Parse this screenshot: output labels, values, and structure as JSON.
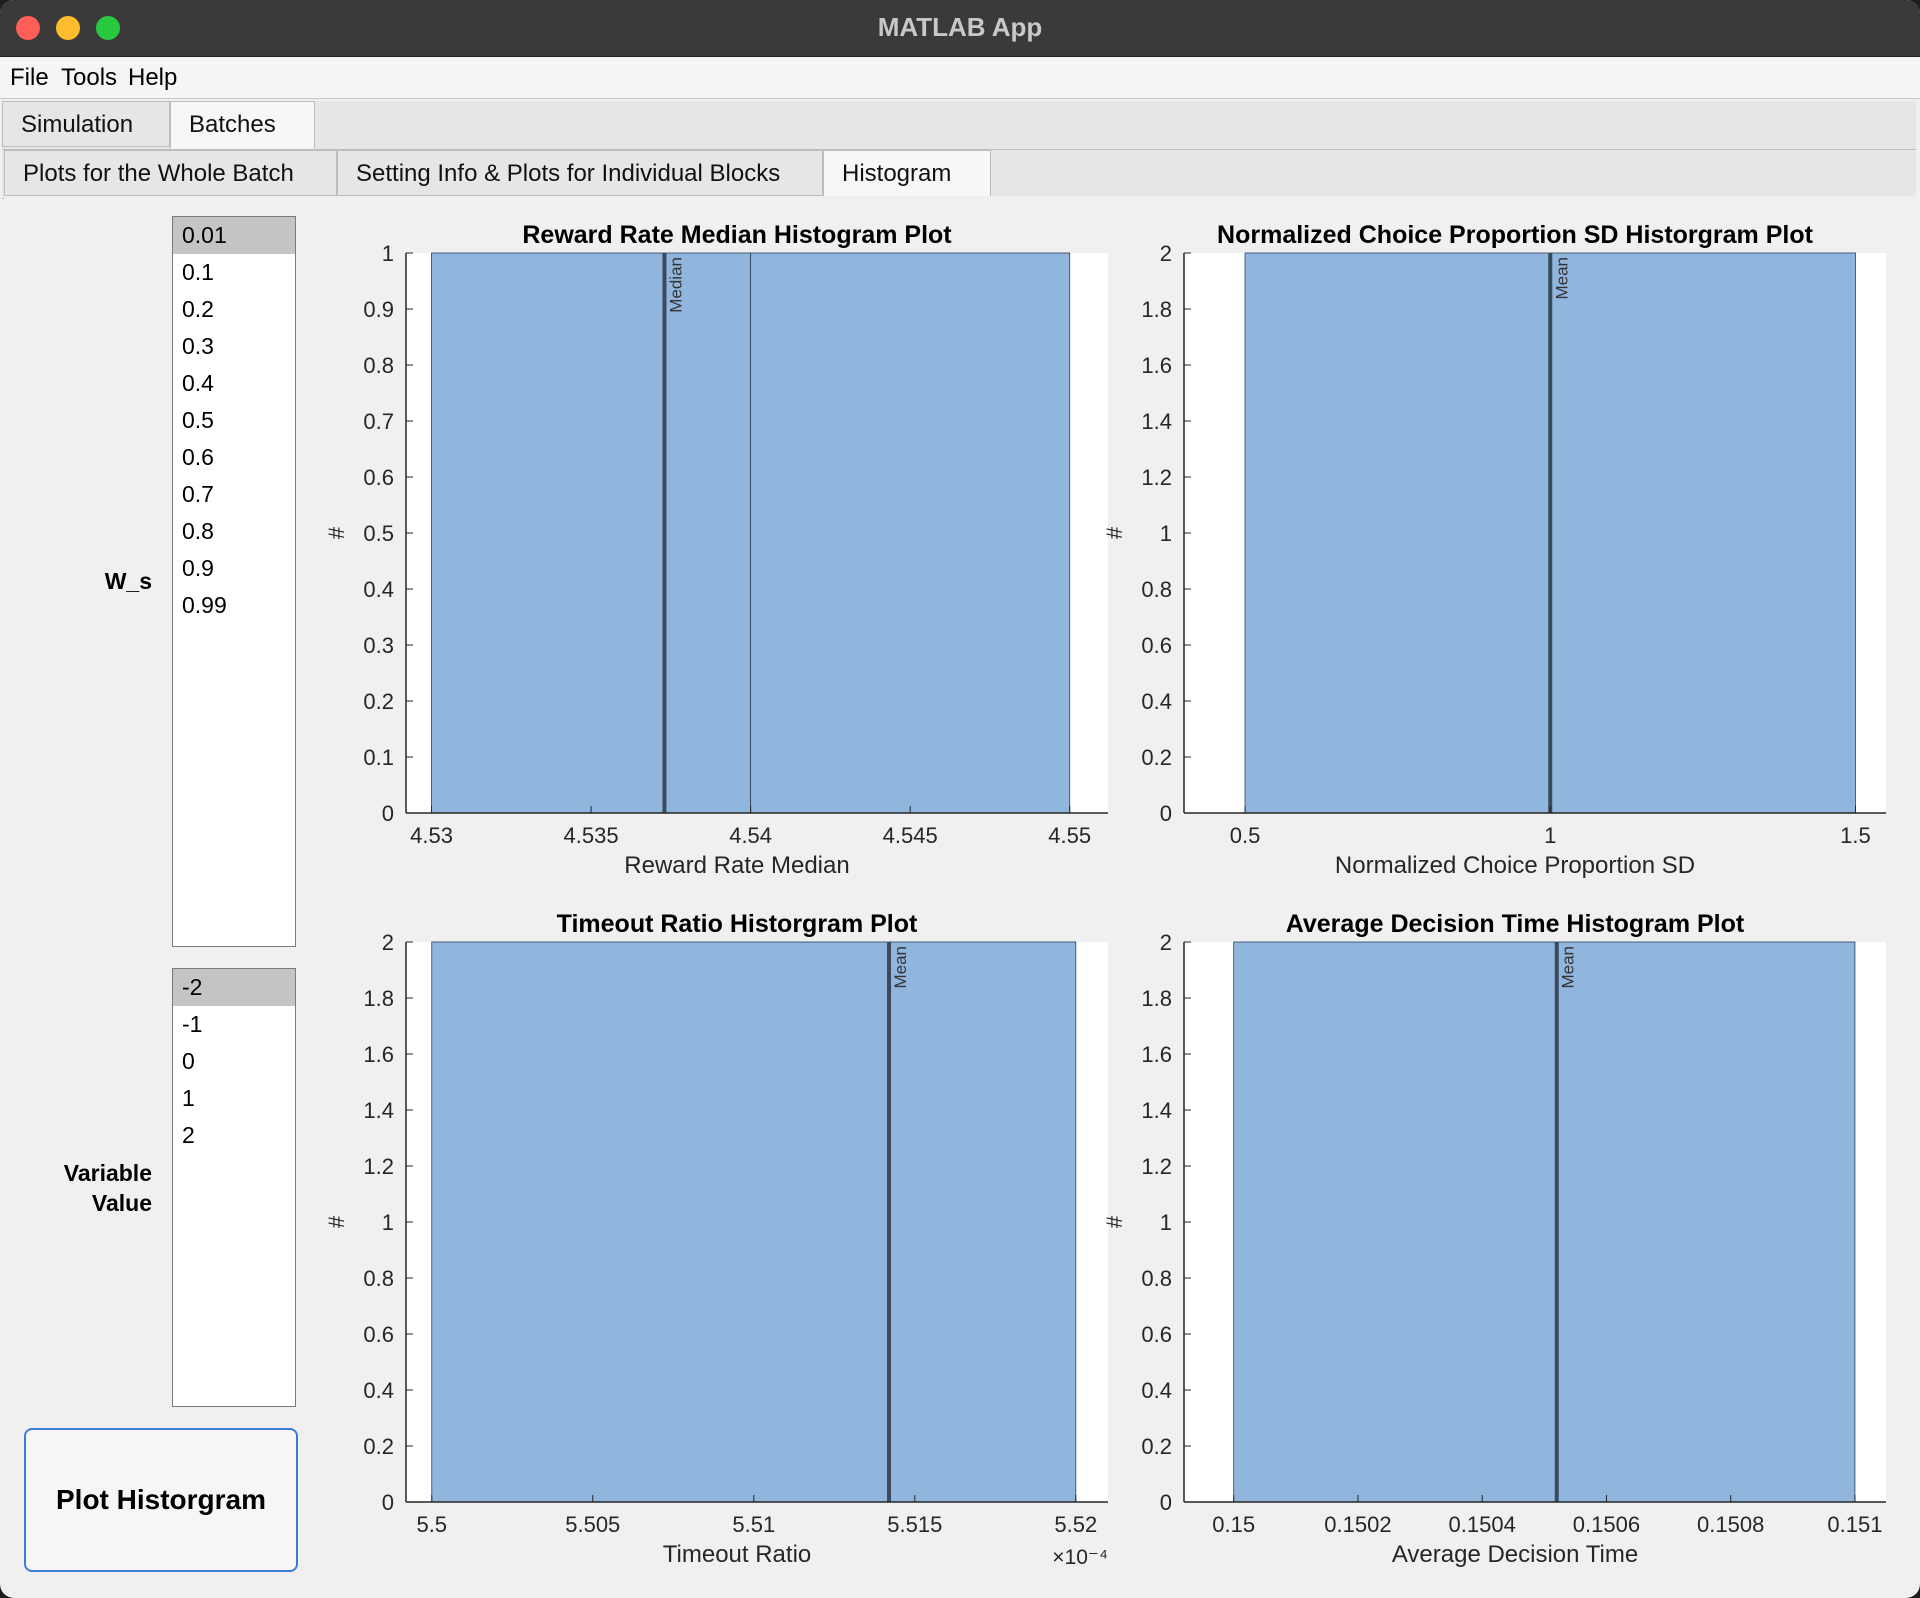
{
  "window": {
    "title": "MATLAB App"
  },
  "menu": [
    "File",
    "Tools",
    "Help"
  ],
  "main_tabs": [
    {
      "label": "Simulation",
      "selected": false
    },
    {
      "label": "Batches",
      "selected": true
    }
  ],
  "sub_tabs": [
    {
      "label": "Plots for the Whole Batch",
      "selected": false
    },
    {
      "label": "Setting Info & Plots for Individual Blocks",
      "selected": false
    },
    {
      "label": "Histogram",
      "selected": true
    }
  ],
  "controls": {
    "ws_label": "W_s",
    "ws_items": [
      "0.01",
      "0.1",
      "0.2",
      "0.3",
      "0.4",
      "0.5",
      "0.6",
      "0.7",
      "0.8",
      "0.9",
      "0.99"
    ],
    "ws_selected": "0.01",
    "variable_label_line1": "Variable",
    "variable_label_line2": "Value",
    "variable_items": [
      "-2",
      "-1",
      "0",
      "1",
      "2"
    ],
    "variable_selected": "-2",
    "plot_button_label": "Plot Historgram"
  },
  "colors": {
    "bar": "#91b6de",
    "line": "#3a4a5e",
    "bar_edge": "#2a3f5a"
  },
  "chart_data": [
    {
      "type": "bar",
      "title": "Reward Rate Median Histogram Plot",
      "xlabel": "Reward Rate Median",
      "ylabel": "#",
      "xlim": [
        4.5292,
        4.5512
      ],
      "ylim": [
        0,
        1
      ],
      "xticks": [
        4.53,
        4.535,
        4.54,
        4.545,
        4.55
      ],
      "xtick_labels": [
        "4.53",
        "4.535",
        "4.54",
        "4.545",
        "4.55"
      ],
      "yticks": [
        0,
        0.1,
        0.2,
        0.3,
        0.4,
        0.5,
        0.6,
        0.7,
        0.8,
        0.9,
        1
      ],
      "ytick_labels": [
        "0",
        "0.1",
        "0.2",
        "0.3",
        "0.4",
        "0.5",
        "0.6",
        "0.7",
        "0.8",
        "0.9",
        "1"
      ],
      "x_exponent": "",
      "bins": [
        {
          "x0": 4.53,
          "x1": 4.54,
          "count": 1
        },
        {
          "x0": 4.54,
          "x1": 4.55,
          "count": 1
        }
      ],
      "vline": {
        "x": 4.5373,
        "label": "Median"
      }
    },
    {
      "type": "bar",
      "title": "Normalized Choice Proportion SD Historgram Plot",
      "xlabel": "Normalized Choice Proportion SD",
      "ylabel": "#",
      "xlim": [
        0.4,
        1.55
      ],
      "ylim": [
        0,
        2
      ],
      "xticks": [
        0.5,
        1,
        1.5
      ],
      "xtick_labels": [
        "0.5",
        "1",
        "1.5"
      ],
      "yticks": [
        0,
        0.2,
        0.4,
        0.6,
        0.8,
        1,
        1.2,
        1.4,
        1.6,
        1.8,
        2
      ],
      "ytick_labels": [
        "0",
        "0.2",
        "0.4",
        "0.6",
        "0.8",
        "1",
        "1.2",
        "1.4",
        "1.6",
        "1.8",
        "2"
      ],
      "x_exponent": "",
      "bins": [
        {
          "x0": 0.5,
          "x1": 1.5,
          "count": 2
        }
      ],
      "vline": {
        "x": 1,
        "label": "Mean"
      }
    },
    {
      "type": "bar",
      "title": "Timeout Ratio Historgram Plot",
      "xlabel": "Timeout Ratio",
      "ylabel": "#",
      "xlim": [
        5.4992,
        5.521
      ],
      "ylim": [
        0,
        2
      ],
      "xticks": [
        5.5,
        5.505,
        5.51,
        5.515,
        5.52
      ],
      "xtick_labels": [
        "5.5",
        "5.505",
        "5.51",
        "5.515",
        "5.52"
      ],
      "yticks": [
        0,
        0.2,
        0.4,
        0.6,
        0.8,
        1,
        1.2,
        1.4,
        1.6,
        1.8,
        2
      ],
      "ytick_labels": [
        "0",
        "0.2",
        "0.4",
        "0.6",
        "0.8",
        "1",
        "1.2",
        "1.4",
        "1.6",
        "1.8",
        "2"
      ],
      "x_exponent": "×10⁻⁴",
      "bins": [
        {
          "x0": 5.5,
          "x1": 5.52,
          "count": 2
        }
      ],
      "vline": {
        "x": 5.5142,
        "label": "Mean"
      }
    },
    {
      "type": "bar",
      "title": "Average Decision Time Histogram Plot",
      "xlabel": "Average Decision Time",
      "ylabel": "#",
      "xlim": [
        0.14992,
        0.15105
      ],
      "ylim": [
        0,
        2
      ],
      "xticks": [
        0.15,
        0.1502,
        0.1504,
        0.1506,
        0.1508,
        0.151
      ],
      "xtick_labels": [
        "0.15",
        "0.1502",
        "0.1504",
        "0.1506",
        "0.1508",
        "0.151"
      ],
      "yticks": [
        0,
        0.2,
        0.4,
        0.6,
        0.8,
        1,
        1.2,
        1.4,
        1.6,
        1.8,
        2
      ],
      "ytick_labels": [
        "0",
        "0.2",
        "0.4",
        "0.6",
        "0.8",
        "1",
        "1.2",
        "1.4",
        "1.6",
        "1.8",
        "2"
      ],
      "x_exponent": "",
      "bins": [
        {
          "x0": 0.15,
          "x1": 0.151,
          "count": 2
        }
      ],
      "vline": {
        "x": 0.15052,
        "label": "Mean"
      }
    }
  ]
}
